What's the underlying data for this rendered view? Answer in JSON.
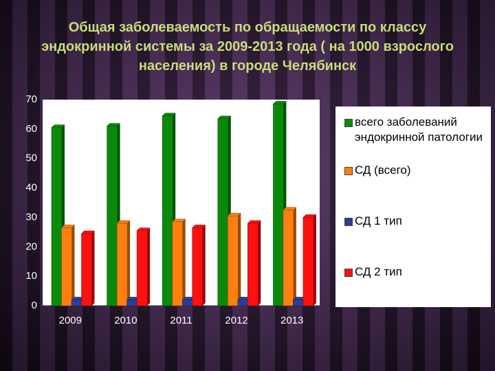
{
  "chart_data": {
    "type": "bar",
    "title": "Общая заболеваемость по обращаемости по классу эндокринной системы за 2009-2013 года ( на 1000 взрослого населения) в городе Челябинск",
    "categories": [
      "2009",
      "2010",
      "2011",
      "2012",
      "2013"
    ],
    "series": [
      {
        "name": "всего заболеваний эндокринной патологии",
        "color": "#0a8a0a",
        "values": [
          60.5,
          61,
          64.5,
          63.5,
          68.5
        ]
      },
      {
        "name": "СД (всего)",
        "color": "#ff7f10",
        "values": [
          26.5,
          28,
          28.5,
          30.5,
          32.5
        ]
      },
      {
        "name": "СД 1 тип",
        "color": "#2a3f9a",
        "values": [
          2,
          2,
          2,
          2,
          2
        ]
      },
      {
        "name": "СД 2 тип",
        "color": "#ff1010",
        "values": [
          24.5,
          25.5,
          26.5,
          28,
          30
        ]
      }
    ],
    "ylim": [
      0,
      70
    ],
    "yticks": [
      0,
      10,
      20,
      30,
      40,
      50,
      60,
      70
    ],
    "grid": false
  }
}
